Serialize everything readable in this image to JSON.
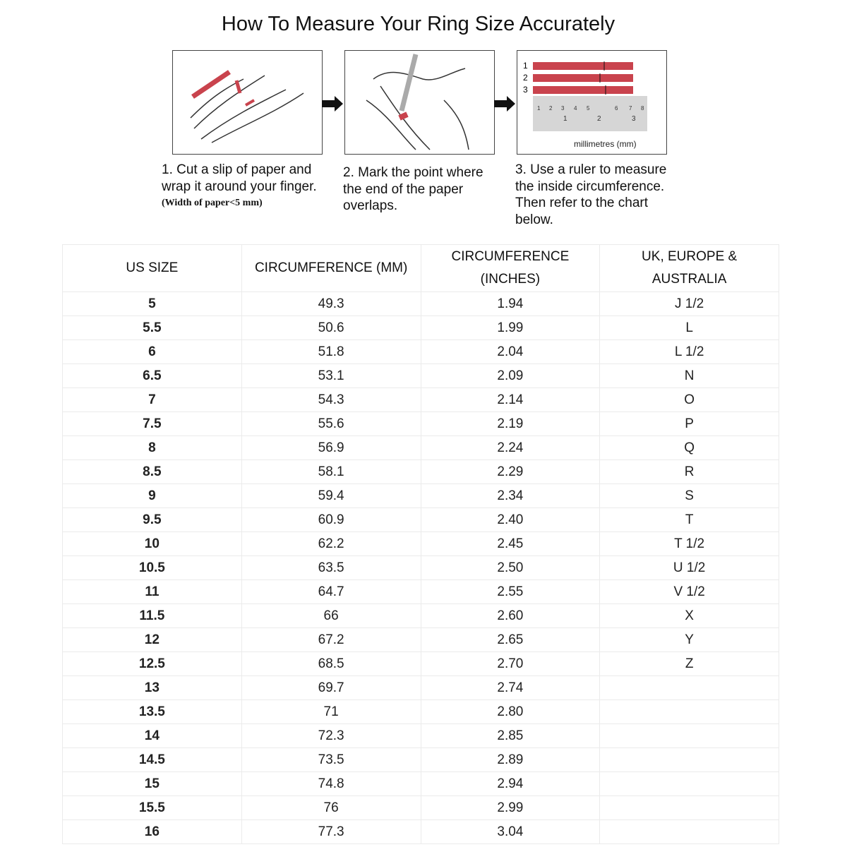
{
  "title": "How To Measure Your Ring Size Accurately",
  "steps": [
    {
      "text": "1. Cut a slip of paper and wrap it around your finger.",
      "note": "(Width of paper<5 mm)"
    },
    {
      "text": "2. Mark the point where the end of the paper overlaps."
    },
    {
      "text": "3. Use a ruler to measure the inside circumference. Then refer to the chart below."
    }
  ],
  "ruler": {
    "strip_labels": [
      "1",
      "2",
      "3"
    ],
    "unit_label": "millimetres (mm)",
    "top_ticks": [
      "1",
      "2",
      "3",
      "4",
      "5",
      "6",
      "7",
      "8"
    ],
    "bottom_ticks": [
      "1",
      "2",
      "3"
    ]
  },
  "colors": {
    "accent_red": "#c9434d"
  },
  "table": {
    "headers": [
      "US SIZE",
      "CIRCUMFERENCE (MM)",
      "CIRCUMFERENCE (INCHES)",
      "UK, EUROPE & AUSTRALIA"
    ],
    "rows": [
      [
        "5",
        "49.3",
        "1.94",
        "J 1/2"
      ],
      [
        "5.5",
        "50.6",
        "1.99",
        "L"
      ],
      [
        "6",
        "51.8",
        "2.04",
        "L 1/2"
      ],
      [
        "6.5",
        "53.1",
        "2.09",
        "N"
      ],
      [
        "7",
        "54.3",
        "2.14",
        "O"
      ],
      [
        "7.5",
        "55.6",
        "2.19",
        "P"
      ],
      [
        "8",
        "56.9",
        "2.24",
        "Q"
      ],
      [
        "8.5",
        "58.1",
        "2.29",
        "R"
      ],
      [
        "9",
        "59.4",
        "2.34",
        "S"
      ],
      [
        "9.5",
        "60.9",
        "2.40",
        "T"
      ],
      [
        "10",
        "62.2",
        "2.45",
        "T 1/2"
      ],
      [
        "10.5",
        "63.5",
        "2.50",
        "U 1/2"
      ],
      [
        "11",
        "64.7",
        "2.55",
        "V 1/2"
      ],
      [
        "11.5",
        "66",
        "2.60",
        "X"
      ],
      [
        "12",
        "67.2",
        "2.65",
        "Y"
      ],
      [
        "12.5",
        "68.5",
        "2.70",
        "Z"
      ],
      [
        "13",
        "69.7",
        "2.74",
        ""
      ],
      [
        "13.5",
        "71",
        "2.80",
        ""
      ],
      [
        "14",
        "72.3",
        "2.85",
        ""
      ],
      [
        "14.5",
        "73.5",
        "2.89",
        ""
      ],
      [
        "15",
        "74.8",
        "2.94",
        ""
      ],
      [
        "15.5",
        "76",
        "2.99",
        ""
      ],
      [
        "16",
        "77.3",
        "3.04",
        ""
      ]
    ]
  }
}
